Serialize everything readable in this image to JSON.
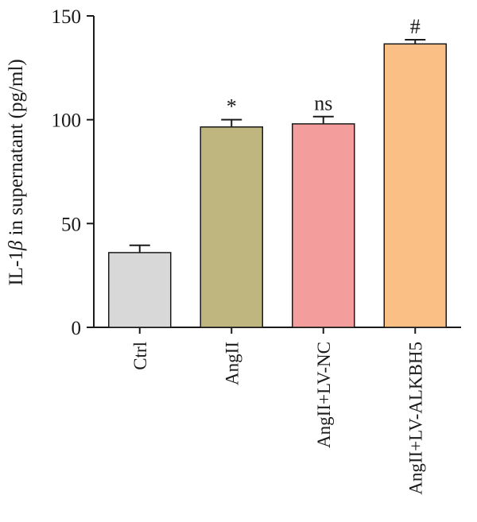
{
  "chart_data": {
    "type": "bar",
    "ylabel_prefix": "IL-1",
    "ylabel_symbol": "β",
    "ylabel_suffix": " in supernatant (pg/ml)",
    "ylim": [
      0,
      150
    ],
    "yticks": [
      0,
      50,
      100,
      150
    ],
    "ytick_labels": [
      "0",
      "50",
      "100",
      "150"
    ],
    "grid": false,
    "categories": [
      "Ctrl",
      "AngII",
      "AngII+LV-NC",
      "AngII+LV-ALKBH5"
    ],
    "values": [
      36,
      96.5,
      98,
      136.5
    ],
    "errors": [
      3.5,
      3.5,
      3.5,
      2
    ],
    "annotations": [
      "",
      "*",
      "ns",
      "#"
    ],
    "colors": [
      "#d8d8d8",
      "#bfb57e",
      "#f39d9d",
      "#f9bf85"
    ]
  }
}
